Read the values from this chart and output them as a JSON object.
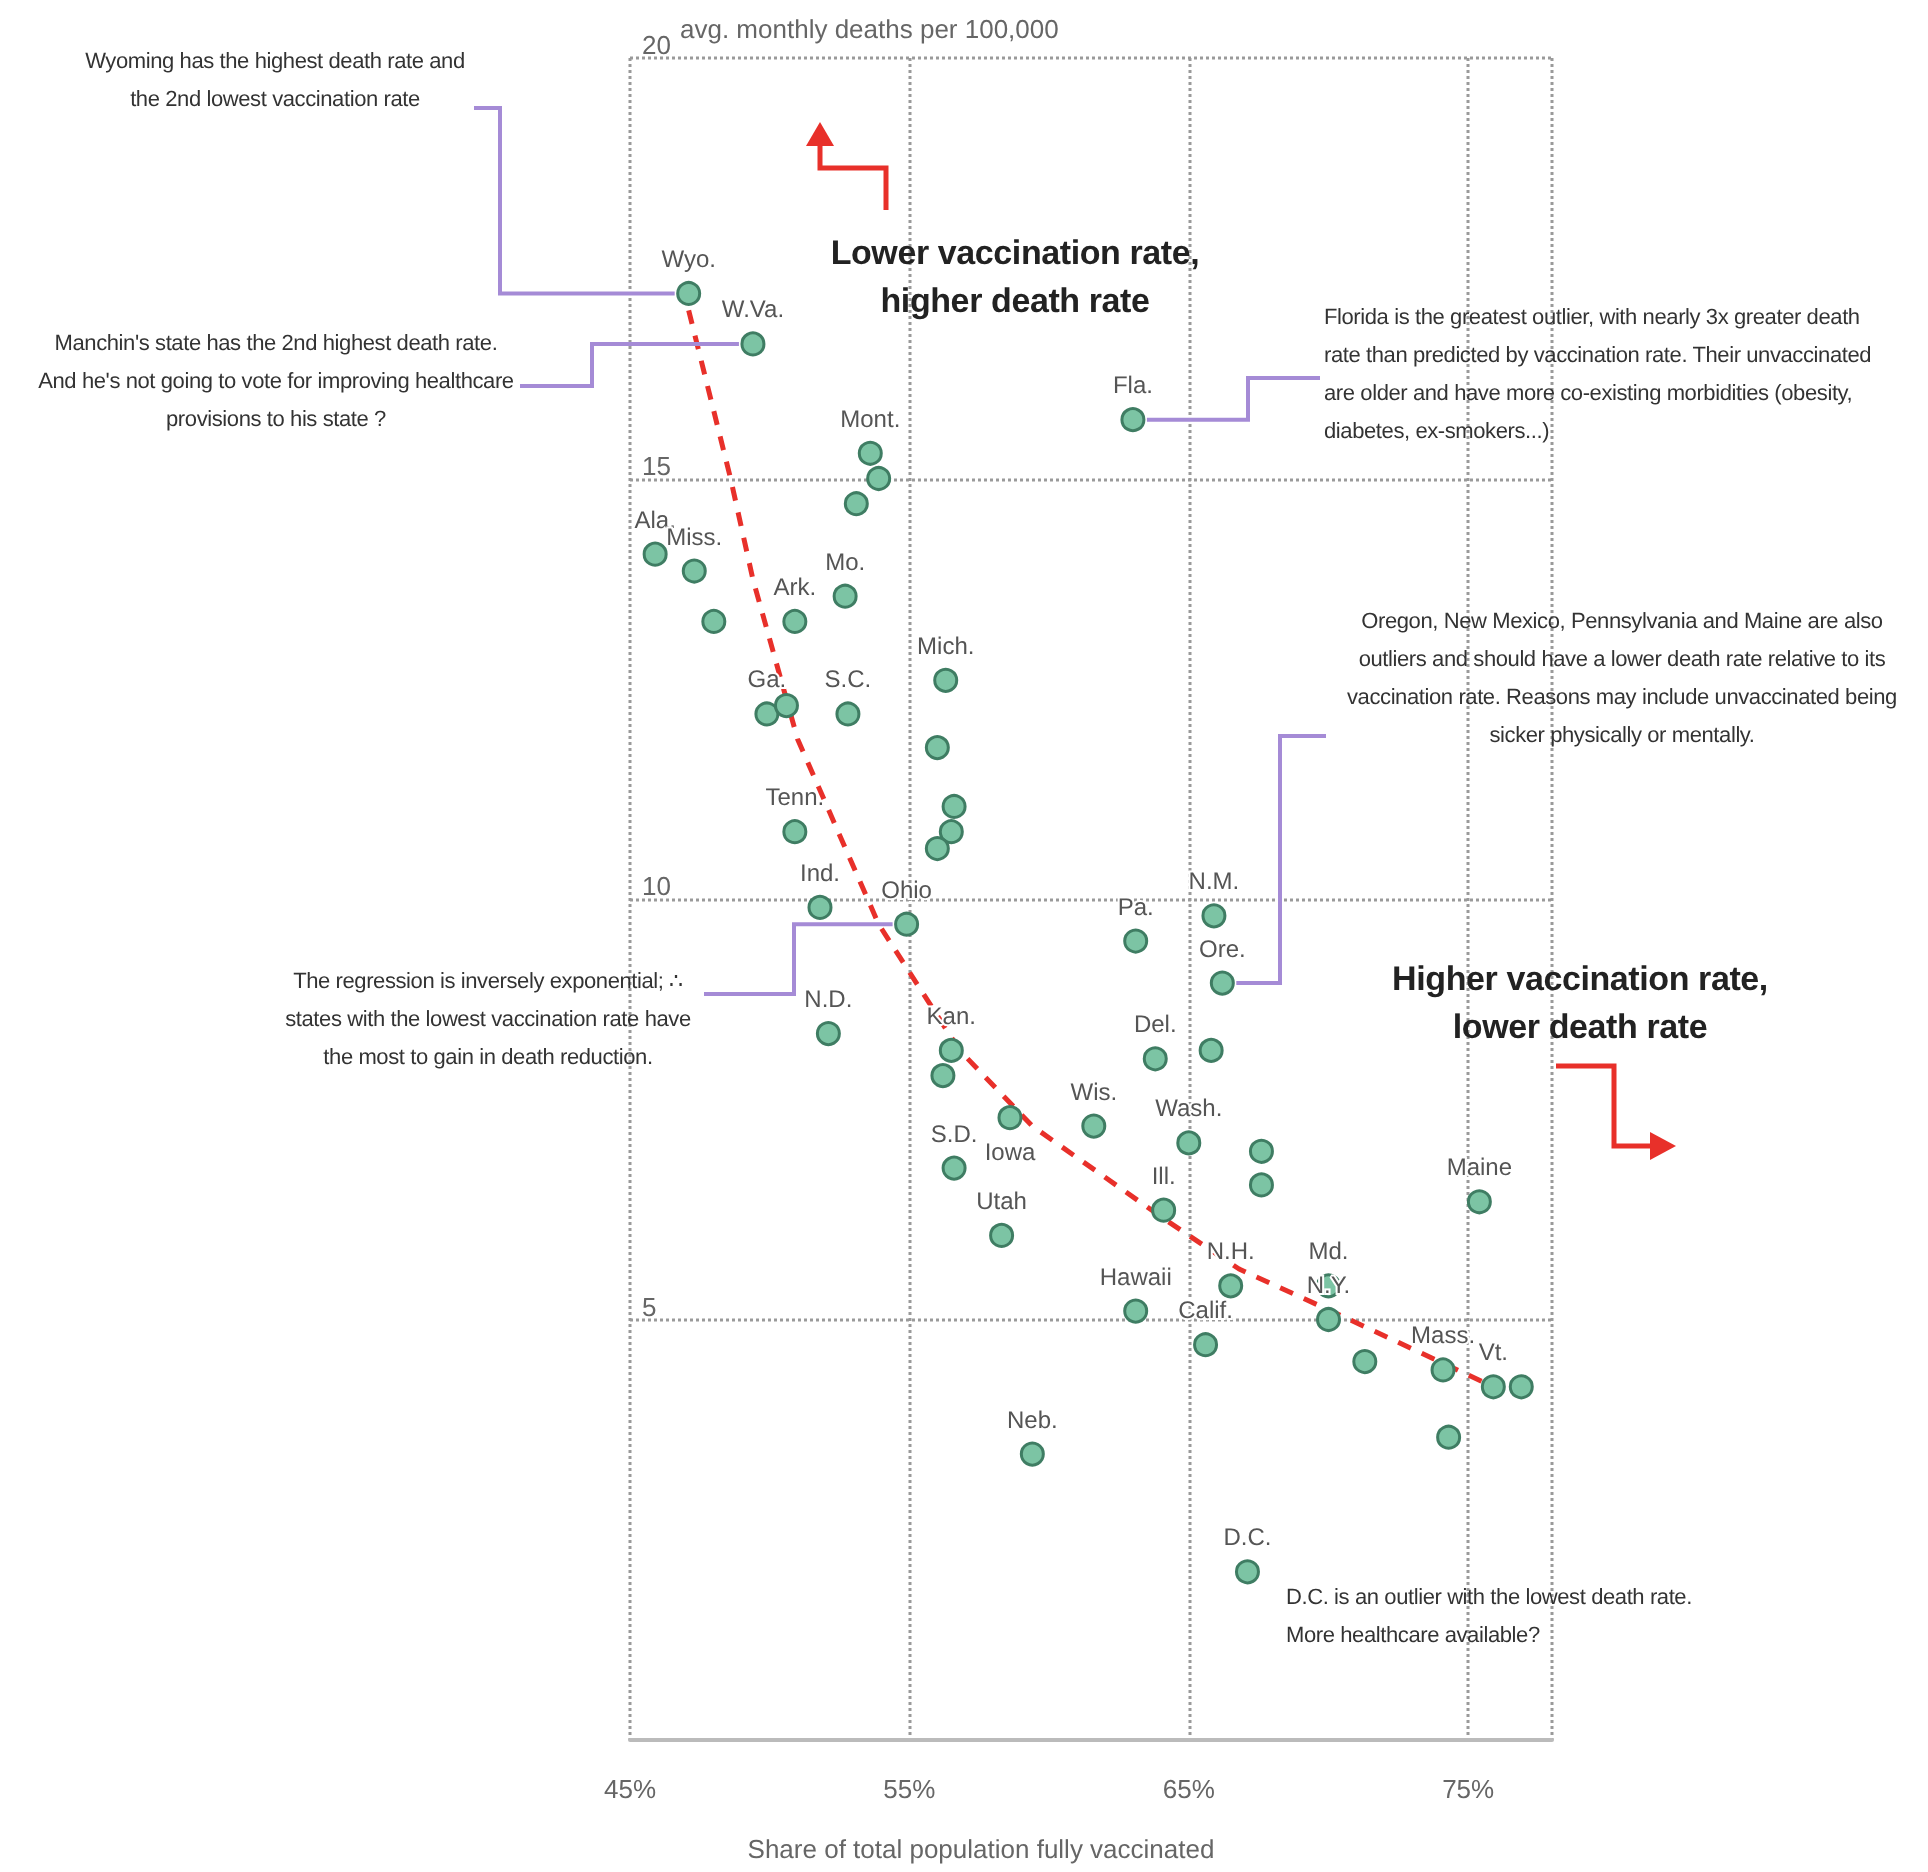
{
  "chart_data": {
    "type": "scatter",
    "xlabel": "Share of total population fully vaccinated",
    "ylabel": "avg. monthly deaths per 100,000",
    "xlim": [
      45,
      78
    ],
    "xticks": [
      {
        "value": 45,
        "label": "45%"
      },
      {
        "value": 55,
        "label": "55%"
      },
      {
        "value": 65,
        "label": "65%"
      },
      {
        "value": 75,
        "label": "75%"
      }
    ],
    "ylim": [
      0,
      20
    ],
    "yticks": [
      5,
      10,
      15,
      20
    ],
    "grid": true,
    "marker": "circle",
    "series": [
      {
        "color": "#7cc4a4",
        "x": [
          47.1,
          49.4,
          63.0,
          53.6,
          53.9,
          53.1,
          45.9,
          47.3,
          48.0,
          52.7,
          50.9,
          49.9,
          50.6,
          52.8,
          56.3,
          56.0,
          56.6,
          56.5,
          56.0,
          50.9,
          51.8,
          54.9,
          63.1,
          65.9,
          66.2,
          52.1,
          56.5,
          56.2,
          58.6,
          56.6,
          61.6,
          63.8,
          65.8,
          58.3,
          65.0,
          67.6,
          67.6,
          64.1,
          75.4,
          66.5,
          63.1,
          70.0,
          70.0,
          65.6,
          71.3,
          74.1,
          74.3,
          75.9,
          76.9,
          59.4,
          67.1
        ],
        "values": [
          17.2,
          16.6,
          15.7,
          15.3,
          15.0,
          14.7,
          14.1,
          13.9,
          13.3,
          13.6,
          13.3,
          12.2,
          12.3,
          12.2,
          12.6,
          11.8,
          11.1,
          10.8,
          10.6,
          10.8,
          9.9,
          9.7,
          9.5,
          9.8,
          9.0,
          8.4,
          8.2,
          7.9,
          7.4,
          6.8,
          7.3,
          8.1,
          8.2,
          6.0,
          7.1,
          7.0,
          6.6,
          6.3,
          6.4,
          5.4,
          5.1,
          5.4,
          5.0,
          4.7,
          4.5,
          4.4,
          3.6,
          4.2,
          4.2,
          3.4,
          2.0
        ],
        "value_labels": [
          "Wyo.",
          "W.Va.",
          "Fla.",
          "Mont.",
          null,
          null,
          "Ala.",
          "Miss.",
          null,
          "Mo.",
          "Ark.",
          "Ga.",
          null,
          "S.C.",
          "Mich.",
          null,
          null,
          null,
          null,
          "Tenn.",
          "Ind.",
          "Ohio",
          "Pa.",
          "N.M.",
          "Ore.",
          "N.D.",
          "Kan.",
          null,
          "Iowa",
          "S.D.",
          "Wis.",
          "Del.",
          null,
          "Utah",
          "Wash.",
          null,
          null,
          "Ill.",
          "Maine",
          "N.H.",
          "Hawaii",
          "Md.",
          "N.Y.",
          "Calif.",
          null,
          "Mass.",
          null,
          "Vt.",
          null,
          "Neb.",
          "D.C."
        ]
      },
      {
        "type": "line",
        "color": "#e8302a",
        "line_style": "dashed",
        "marker": "none",
        "x": [
          47.1,
          48.6,
          49.4,
          51.0,
          53.9,
          56.8,
          59.4,
          64.1,
          66.8,
          70.1,
          75.9
        ],
        "values": [
          17.0,
          15.0,
          13.8,
          11.9,
          9.7,
          8.2,
          7.3,
          6.2,
          5.6,
          5.1,
          4.2
        ]
      }
    ],
    "annotations": [
      {
        "text": "Wyoming has the highest death rate and the 2nd lowest vaccination rate",
        "x": 47.1,
        "y": 17.2
      },
      {
        "text": "Manchin's state has the 2nd highest death rate. And he's not going to vote for improving healthcare provisions to his state ?",
        "x": 49.4,
        "y": 16.6
      },
      "Lower vaccination rate, higher death rate",
      {
        "text": "Florida is the greatest outlier, with nearly 3x greater death rate than predicted by vaccination rate. Their unvaccinated are older and have more co-existing morbidities (obesity, diabetes, ex-smokers...)",
        "x": 63.0,
        "y": 15.7
      },
      {
        "text": "Oregon, New Mexico, Pennsylvania and Maine are also outliers and should have a lower death rate relative to its vaccination rate. Reasons may include unvaccinated being sicker physically or mentally.",
        "x": 66.2,
        "y": 9.0
      },
      "Higher vaccination rate, lower death rate",
      {
        "text": "The regression is inversely exponential; ∴ states with the lowest vaccination rate have the most to gain in death reduction.",
        "x": 54.9,
        "y": 9.7
      },
      "D.C. is an outlier with the lowest death rate. More healthcare available?"
    ]
  }
}
